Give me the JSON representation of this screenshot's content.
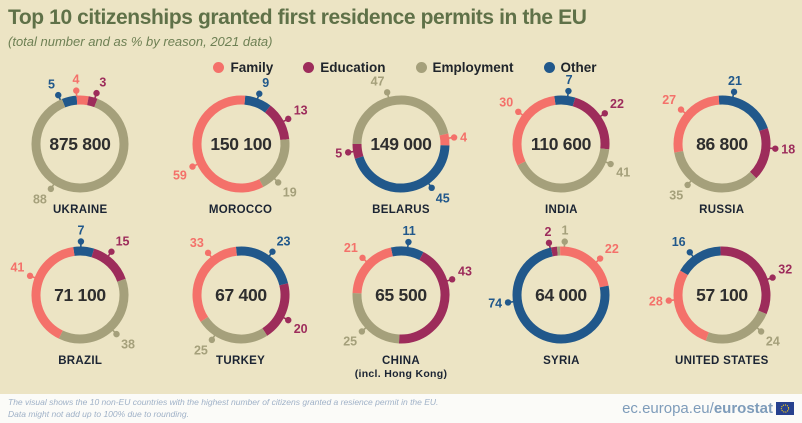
{
  "header": {
    "title": "Top 10 citizenships granted first residence permits in the EU",
    "subtitle": "(total number and as % by reason, 2021 data)"
  },
  "legend": {
    "items": [
      {
        "key": "family",
        "label": "Family"
      },
      {
        "key": "education",
        "label": "Education"
      },
      {
        "key": "employment",
        "label": "Employment"
      },
      {
        "key": "other",
        "label": "Other"
      }
    ]
  },
  "colors": {
    "family": "#f4716a",
    "education": "#9d2c5b",
    "employment": "#a5a07b",
    "other": "#21588b",
    "background": "#ece4c4",
    "title": "#5f7148",
    "total": "#2e2e2e",
    "country_label": "#1b2433",
    "footer_text": "#9fb1c7",
    "footer_link": "#7e9cba"
  },
  "chart_data": {
    "type": "pie",
    "variant": "donut",
    "value_unit": "% by reason",
    "legend_position": "top",
    "charts": [
      {
        "country": "UKRAINE",
        "total": "875 800",
        "start_angle": -22,
        "segments": [
          {
            "reason": "other",
            "value": 5,
            "label_angle": -24
          },
          {
            "reason": "family",
            "value": 4,
            "label_angle": -4
          },
          {
            "reason": "education",
            "value": 3,
            "label_angle": 18
          },
          {
            "reason": "employment",
            "value": 88,
            "label_angle": 213
          }
        ]
      },
      {
        "country": "MOROCCO",
        "total": "150 100",
        "start_angle": 5,
        "segments": [
          {
            "reason": "other",
            "value": 9,
            "label_angle": 20
          },
          {
            "reason": "education",
            "value": 13,
            "label_angle": 62
          },
          {
            "reason": "employment",
            "value": 19,
            "label_angle": 136
          },
          {
            "reason": "family",
            "value": 59,
            "label_angle": 245
          }
        ]
      },
      {
        "country": "BELARUS",
        "total": "149 000",
        "start_angle": -90,
        "segments": [
          {
            "reason": "employment",
            "value": 47,
            "label_angle": -15
          },
          {
            "reason": "family",
            "value": 4,
            "label_angle": 83
          },
          {
            "reason": "other",
            "value": 45,
            "label_angle": 145
          },
          {
            "reason": "education",
            "value": 5,
            "label_angle": 261
          }
        ]
      },
      {
        "country": "INDIA",
        "total": "110 600",
        "start_angle": -8,
        "segments": [
          {
            "reason": "other",
            "value": 7,
            "label_angle": 8
          },
          {
            "reason": "education",
            "value": 22,
            "label_angle": 55
          },
          {
            "reason": "employment",
            "value": 41,
            "label_angle": 112
          },
          {
            "reason": "family",
            "value": 30,
            "label_angle": 307
          }
        ]
      },
      {
        "country": "RUSSIA",
        "total": "86 800",
        "start_angle": -4,
        "segments": [
          {
            "reason": "other",
            "value": 21,
            "label_angle": 13
          },
          {
            "reason": "education",
            "value": 18,
            "label_angle": 95
          },
          {
            "reason": "employment",
            "value": 35,
            "label_angle": 220
          },
          {
            "reason": "family",
            "value": 27,
            "label_angle": 310
          }
        ]
      },
      {
        "country": "BRAZIL",
        "total": "71 100",
        "start_angle": -8,
        "segments": [
          {
            "reason": "other",
            "value": 7,
            "label_angle": 1
          },
          {
            "reason": "education",
            "value": 15,
            "label_angle": 36
          },
          {
            "reason": "employment",
            "value": 38,
            "label_angle": 137
          },
          {
            "reason": "family",
            "value": 41,
            "label_angle": 291
          }
        ]
      },
      {
        "country": "TURKEY",
        "total": "67 400",
        "start_angle": -6,
        "segments": [
          {
            "reason": "other",
            "value": 23,
            "label_angle": 36
          },
          {
            "reason": "education",
            "value": 20,
            "label_angle": 118
          },
          {
            "reason": "employment",
            "value": 25,
            "label_angle": 213
          },
          {
            "reason": "family",
            "value": 33,
            "label_angle": 322
          }
        ]
      },
      {
        "country": "CHINA",
        "country_line2": "(incl. Hong Kong)",
        "total": "65 500",
        "start_angle": -12,
        "segments": [
          {
            "reason": "other",
            "value": 11,
            "label_angle": 8
          },
          {
            "reason": "education",
            "value": 43,
            "label_angle": 73
          },
          {
            "reason": "employment",
            "value": 25,
            "label_angle": 227
          },
          {
            "reason": "family",
            "value": 21,
            "label_angle": 314
          }
        ]
      },
      {
        "country": "SYRIA",
        "total": "64 000",
        "start_angle": -12,
        "segments": [
          {
            "reason": "education",
            "value": 2,
            "label_angle": -13
          },
          {
            "reason": "employment",
            "value": 1,
            "label_angle": 4
          },
          {
            "reason": "family",
            "value": 22,
            "label_angle": 47
          },
          {
            "reason": "other",
            "value": 74,
            "label_angle": 262
          }
        ]
      },
      {
        "country": "UNITED STATES",
        "total": "57 100",
        "start_angle": -2,
        "segments": [
          {
            "reason": "education",
            "value": 32,
            "label_angle": 71
          },
          {
            "reason": "employment",
            "value": 24,
            "label_angle": 133
          },
          {
            "reason": "family",
            "value": 28,
            "label_angle": 264
          },
          {
            "reason": "other",
            "value": 16,
            "label_angle": 323
          }
        ]
      }
    ]
  },
  "footer": {
    "note_line1": "The visual shows the 10 non-EU countries with the highest number of citizens granted a resience permit in the EU.",
    "note_line2": "Data might not add up to 100% due to rounding.",
    "site_prefix": "ec.europa.eu/",
    "site_bold": "eurostat"
  }
}
